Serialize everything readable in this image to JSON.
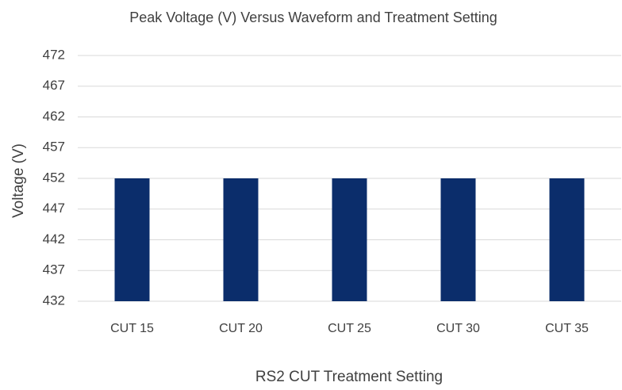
{
  "chart_data": {
    "type": "bar",
    "title": "Peak Voltage (V) Versus Waveform and Treatment Setting",
    "xlabel": "RS2 CUT  Treatment Setting",
    "ylabel": "Voltage (V)",
    "categories": [
      "CUT 15",
      "CUT 20",
      "CUT 25",
      "CUT 30",
      "CUT 35"
    ],
    "values": [
      452,
      452,
      452,
      452,
      452
    ],
    "color": "#0b2d6b",
    "ylim": [
      432,
      472
    ],
    "yticks": [
      432,
      437,
      442,
      447,
      452,
      457,
      462,
      467,
      472
    ],
    "grid": true
  }
}
